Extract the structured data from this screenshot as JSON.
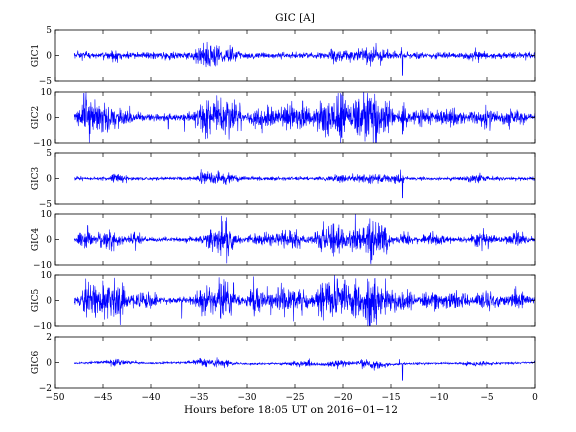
{
  "chart_data": {
    "type": "line",
    "title": "GIC [A]",
    "xlabel": "Hours before  18:05 UT on 2016−01−12",
    "xlim": [
      -50,
      0
    ],
    "data_x_range": [
      -48,
      0
    ],
    "x_ticks": [
      -50,
      -45,
      -40,
      -35,
      -30,
      -25,
      -20,
      -15,
      -10,
      -5,
      0
    ],
    "x_tick_labels": [
      "−50",
      "−45",
      "−40",
      "−35",
      "−30",
      "−25",
      "−20",
      "−15",
      "−10",
      "−5",
      "0"
    ],
    "line_color": "#0000ff",
    "grid": false,
    "legend": "none",
    "panels": [
      {
        "ylabel": "GIC1",
        "ylim": [
          -5,
          5
        ],
        "y_tick_labels": [
          "−5",
          "0",
          "5"
        ],
        "base_amplitude": 0.35,
        "bursts": [
          [
            -47,
            0.6,
            0.3
          ],
          [
            -43.5,
            1.2,
            0.5
          ],
          [
            -38,
            1.0,
            0.3
          ],
          [
            -34.5,
            1.5,
            1.0
          ],
          [
            -33,
            1.5,
            0.7
          ],
          [
            -31.5,
            1.5,
            0.4
          ],
          [
            -20.5,
            1.5,
            0.5
          ],
          [
            -17,
            2.5,
            0.6
          ],
          [
            -6,
            1.0,
            0.3
          ]
        ],
        "spikes": [
          [
            -13.8,
            -3.9
          ],
          [
            -13.9,
            1.6
          ],
          [
            -14.6,
            0.9
          ]
        ]
      },
      {
        "ylabel": "GIC2",
        "ylim": [
          -10,
          10
        ],
        "y_tick_labels": [
          "−10",
          "0",
          "10"
        ],
        "base_amplitude": 0.8,
        "bursts": [
          [
            -46.8,
            1.0,
            3.0
          ],
          [
            -45.5,
            2.0,
            2.0
          ],
          [
            -43.5,
            2.0,
            1.8
          ],
          [
            -34.2,
            1.6,
            4.0
          ],
          [
            -32.3,
            1.4,
            3.5
          ],
          [
            -31,
            0.8,
            2.5
          ],
          [
            -28.5,
            1.5,
            2.0
          ],
          [
            -25,
            2.5,
            2.5
          ],
          [
            -21.8,
            1.2,
            4.0
          ],
          [
            -20.2,
            1.0,
            5.5
          ],
          [
            -18.5,
            1.2,
            4.0
          ],
          [
            -17,
            1.2,
            6.0
          ],
          [
            -15.5,
            1.0,
            3.0
          ],
          [
            -13.7,
            0.6,
            2.5
          ],
          [
            -12,
            1.5,
            1.5
          ],
          [
            -9,
            2.0,
            1.5
          ],
          [
            -5.3,
            1.6,
            2.0
          ],
          [
            -2.5,
            1.6,
            1.5
          ]
        ],
        "spikes": [
          [
            -47.0,
            9.5
          ],
          [
            -45.0,
            -5.5
          ],
          [
            -38.2,
            -4.5
          ],
          [
            -36.5,
            -5.5
          ],
          [
            -31.3,
            7.0
          ],
          [
            -24.2,
            6.5
          ],
          [
            -20.5,
            9.5
          ],
          [
            -20.0,
            8.5
          ],
          [
            -16.5,
            -10.0
          ],
          [
            -13.8,
            -6.5
          ]
        ]
      },
      {
        "ylabel": "GIC3",
        "ylim": [
          -5,
          5
        ],
        "y_tick_labels": [
          "−5",
          "0",
          "5"
        ],
        "base_amplitude": 0.2,
        "bursts": [
          [
            -43.5,
            1.5,
            0.4
          ],
          [
            -34.5,
            1.0,
            0.7
          ],
          [
            -32.5,
            1.5,
            0.6
          ],
          [
            -20.5,
            1.5,
            0.3
          ],
          [
            -17,
            2.5,
            0.4
          ],
          [
            -14.2,
            0.8,
            0.4
          ],
          [
            -6,
            1.5,
            0.3
          ]
        ],
        "spikes": [
          [
            -13.8,
            -3.8
          ],
          [
            -14.0,
            1.7
          ],
          [
            -33.0,
            1.5
          ]
        ]
      },
      {
        "ylabel": "GIC4",
        "ylim": [
          -10,
          10
        ],
        "y_tick_labels": [
          "−10",
          "0",
          "10"
        ],
        "base_amplitude": 0.5,
        "bursts": [
          [
            -47,
            1.0,
            1.8
          ],
          [
            -44.5,
            1.8,
            1.8
          ],
          [
            -41.5,
            1.0,
            1.2
          ],
          [
            -33.5,
            1.3,
            3.0
          ],
          [
            -32.2,
            1.2,
            3.5
          ],
          [
            -28.5,
            1.5,
            1.5
          ],
          [
            -25.5,
            2.0,
            1.8
          ],
          [
            -22,
            1.5,
            2.8
          ],
          [
            -20.5,
            1.0,
            3.0
          ],
          [
            -18.7,
            1.2,
            3.2
          ],
          [
            -17,
            1.0,
            5.0
          ],
          [
            -15.8,
            0.9,
            3.0
          ],
          [
            -13.5,
            0.8,
            1.5
          ],
          [
            -10.5,
            1.5,
            1.2
          ],
          [
            -5.5,
            1.5,
            1.5
          ],
          [
            -2.0,
            1.5,
            1.2
          ]
        ],
        "spikes": [
          [
            -46.6,
            5.5
          ],
          [
            -31.5,
            -4.0
          ],
          [
            -17.0,
            -8.0
          ],
          [
            -16.3,
            6.5
          ],
          [
            -20.5,
            4.5
          ]
        ]
      },
      {
        "ylabel": "GIC5",
        "ylim": [
          -10,
          10
        ],
        "y_tick_labels": [
          "−10",
          "0",
          "10"
        ],
        "base_amplitude": 0.7,
        "bursts": [
          [
            -46.5,
            1.0,
            3.0
          ],
          [
            -45,
            1.5,
            3.0
          ],
          [
            -43.3,
            1.6,
            3.0
          ],
          [
            -40.5,
            1.2,
            2.0
          ],
          [
            -34.3,
            1.5,
            3.0
          ],
          [
            -32.3,
            1.3,
            4.0
          ],
          [
            -29,
            1.5,
            2.5
          ],
          [
            -25.5,
            2.5,
            3.0
          ],
          [
            -22,
            1.3,
            3.5
          ],
          [
            -20.3,
            1.0,
            5.0
          ],
          [
            -18.5,
            1.2,
            4.0
          ],
          [
            -17,
            1.2,
            5.5
          ],
          [
            -15.3,
            1.0,
            3.0
          ],
          [
            -13.5,
            1.0,
            2.0
          ],
          [
            -10.8,
            1.5,
            2.0
          ],
          [
            -8,
            1.5,
            1.5
          ],
          [
            -5.0,
            1.5,
            2.0
          ],
          [
            -2.0,
            1.5,
            1.5
          ]
        ],
        "spikes": [
          [
            -46.8,
            8.5
          ],
          [
            -44.5,
            -7.0
          ],
          [
            -36.8,
            -7.0
          ],
          [
            -31.4,
            7.0
          ],
          [
            -20.6,
            8.5
          ],
          [
            -19.8,
            8.0
          ],
          [
            -16.5,
            -9.5
          ],
          [
            -2.0,
            5.5
          ]
        ]
      },
      {
        "ylabel": "GIC6",
        "ylim": [
          -2,
          2
        ],
        "y_tick_labels": [
          "−2",
          "0",
          "2"
        ],
        "base_amplitude": 0.05,
        "bursts": [
          [
            -43.5,
            2.0,
            0.12
          ],
          [
            -34.5,
            1.5,
            0.2
          ],
          [
            -32.5,
            1.5,
            0.15
          ],
          [
            -24,
            2.0,
            0.12
          ],
          [
            -20.5,
            1.5,
            0.15
          ],
          [
            -17,
            2.0,
            0.2
          ],
          [
            -6,
            1.5,
            0.1
          ]
        ],
        "spikes": [
          [
            -13.8,
            -1.4
          ],
          [
            -14.1,
            0.25
          ],
          [
            -18.0,
            -0.5
          ],
          [
            -23.5,
            0.3
          ]
        ],
        "drift": [
          [
            -48,
            -0.05
          ],
          [
            -44,
            0.05
          ],
          [
            -40,
            -0.05
          ],
          [
            -35,
            0.02
          ],
          [
            -30,
            -0.1
          ],
          [
            -25,
            -0.08
          ],
          [
            -22,
            -0.12
          ],
          [
            -19,
            -0.05
          ],
          [
            -16,
            -0.2
          ],
          [
            -14,
            -0.1
          ],
          [
            -10,
            -0.05
          ],
          [
            -6,
            -0.1
          ],
          [
            -3,
            -0.05
          ],
          [
            0,
            0.0
          ]
        ]
      }
    ]
  }
}
